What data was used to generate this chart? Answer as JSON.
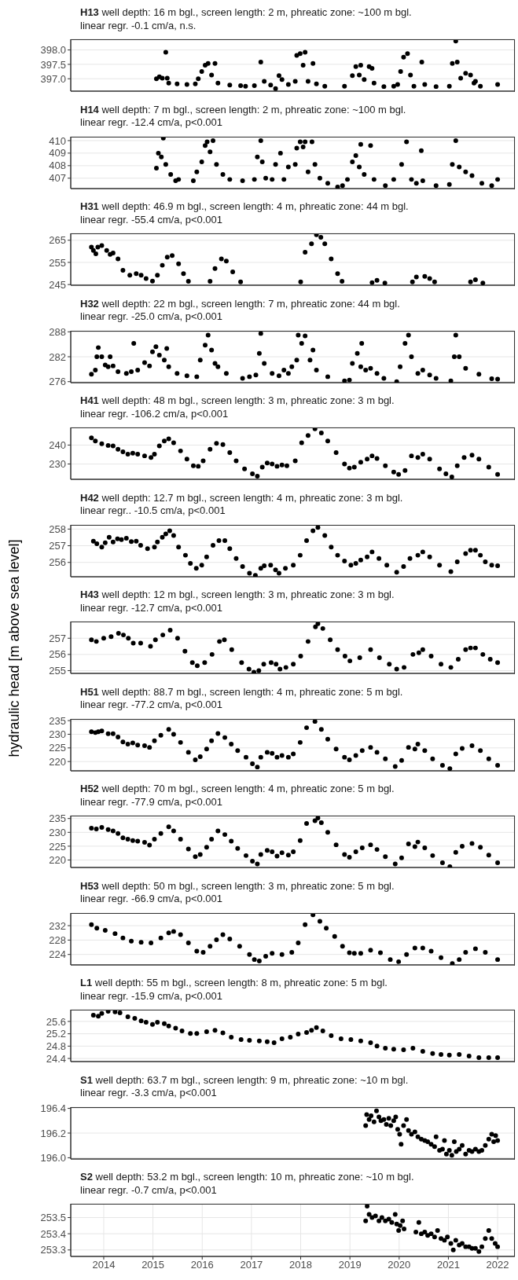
{
  "chart_data": [
    {
      "type": "scatter",
      "title": "H13 well depth: 16 m bgl., screen length: 2 m, phreatic zone: ~100 m bgl.",
      "subtitle": "linear regr. -0.1 cm/a, n.s.",
      "color": "#000000",
      "marker": "circle",
      "grid": true,
      "tick_labels": "y",
      "xlim": [
        2013.33,
        2022.35
      ],
      "xticks": [
        2014,
        2015,
        2016,
        2017,
        2018,
        2019,
        2020,
        2021,
        2022
      ],
      "ylim": [
        396.57,
        398.37
      ],
      "yticks": [
        {
          "value": 397,
          "label": "397.0"
        },
        397.5,
        {
          "value": 398,
          "label": "398.0"
        }
      ],
      "x": [
        2015.07,
        2015.13,
        2015.19,
        2015.26,
        2015.29,
        2015.32,
        2015.49,
        2015.69,
        2015.86,
        2015.92,
        2015.99,
        2016.06,
        2016.12,
        2016.19,
        2016.26,
        2016.32,
        2016.56,
        2016.78,
        2016.88,
        2017.06,
        2017.19,
        2017.26,
        2017.39,
        2017.49,
        2017.56,
        2017.62,
        2017.75,
        2017.89,
        2017.92,
        2017.99,
        2018.05,
        2018.09,
        2018.15,
        2018.25,
        2018.32,
        2018.49,
        2018.89,
        2019.05,
        2019.12,
        2019.19,
        2019.22,
        2019.29,
        2019.39,
        2019.45,
        2019.49,
        2019.69,
        2019.89,
        2019.97,
        2020.03,
        2020.09,
        2020.17,
        2020.23,
        2020.3,
        2020.46,
        2020.52,
        2020.75,
        2021.02,
        2021.08,
        2021.15,
        2021.18,
        2021.25,
        2021.35,
        2021.45,
        2021.52,
        2021.55,
        2021.65,
        2022.0
      ],
      "values": [
        397.0,
        397.07,
        397.02,
        397.92,
        397.02,
        396.85,
        396.82,
        396.8,
        396.82,
        397.0,
        397.25,
        397.47,
        397.53,
        397.13,
        397.53,
        396.85,
        396.78,
        396.76,
        396.74,
        396.76,
        397.58,
        396.91,
        396.78,
        396.66,
        397.11,
        396.97,
        396.8,
        396.91,
        397.81,
        397.87,
        397.47,
        397.92,
        396.91,
        397.53,
        396.82,
        396.74,
        396.74,
        397.11,
        397.42,
        397.13,
        397.47,
        396.97,
        397.42,
        397.36,
        396.85,
        396.73,
        396.74,
        396.8,
        397.25,
        397.75,
        397.87,
        397.13,
        396.74,
        397.58,
        396.8,
        396.73,
        396.74,
        397.53,
        398.31,
        397.58,
        397.02,
        397.19,
        397.13,
        396.85,
        396.91,
        396.74,
        396.8
      ]
    },
    {
      "type": "scatter",
      "title": "H14 well depth:  7 m bgl., screen length: 2 m, phreatic zone: ~100 m bgl.",
      "subtitle": "linear regr. -12.4 cm/a, p<0.001",
      "color": "#000000",
      "marker": "circle",
      "grid": true,
      "tick_labels": "y",
      "xlim": [
        2013.33,
        2022.35
      ],
      "xticks": [
        2014,
        2015,
        2016,
        2017,
        2018,
        2019,
        2020,
        2021,
        2022
      ],
      "ylim": [
        406.17,
        410.31
      ],
      "yticks": [
        407,
        408,
        409,
        410
      ],
      "x": [
        2015.07,
        2015.11,
        2015.17,
        2015.21,
        2015.26,
        2015.36,
        2015.46,
        2015.52,
        2015.82,
        2015.89,
        2015.99,
        2016.06,
        2016.1,
        2016.16,
        2016.22,
        2016.29,
        2016.42,
        2016.56,
        2016.82,
        2017.06,
        2017.12,
        2017.19,
        2017.22,
        2017.29,
        2017.42,
        2017.49,
        2017.59,
        2017.66,
        2017.75,
        2017.89,
        2017.92,
        2017.99,
        2018.05,
        2018.09,
        2018.15,
        2018.23,
        2018.29,
        2018.39,
        2018.55,
        2018.75,
        2018.85,
        2018.95,
        2019.05,
        2019.12,
        2019.19,
        2019.22,
        2019.29,
        2019.42,
        2019.49,
        2019.72,
        2019.89,
        2020.05,
        2020.15,
        2020.25,
        2020.35,
        2020.45,
        2020.48,
        2020.75,
        2021.02,
        2021.08,
        2021.15,
        2021.22,
        2021.35,
        2021.48,
        2021.68,
        2021.88,
        2022.0
      ],
      "values": [
        407.8,
        409.0,
        408.7,
        410.2,
        408.1,
        407.3,
        406.8,
        406.9,
        406.8,
        407.5,
        408.3,
        409.6,
        409.9,
        409.1,
        410.0,
        408.1,
        407.3,
        406.9,
        406.8,
        406.9,
        408.7,
        410.0,
        408.3,
        407.0,
        406.9,
        408.1,
        409.0,
        406.9,
        407.9,
        408.1,
        409.4,
        409.9,
        409.5,
        409.9,
        407.5,
        409.9,
        408.1,
        407.0,
        406.6,
        406.3,
        406.4,
        406.9,
        408.3,
        408.8,
        407.9,
        409.7,
        407.3,
        409.6,
        406.9,
        406.4,
        406.9,
        408.1,
        409.9,
        406.9,
        406.6,
        409.2,
        406.8,
        406.4,
        406.5,
        408.1,
        410.0,
        407.9,
        407.5,
        407.2,
        406.6,
        406.4,
        406.9
      ]
    },
    {
      "type": "scatter",
      "title": "H31 well depth:  46.9 m bgl., screen length: 4 m, phreatic zone: 44 m bgl.",
      "subtitle": "linear regr. -55.4 cm/a, p<0.001",
      "color": "#000000",
      "marker": "circle",
      "grid": true,
      "tick_labels": "y",
      "xlim": [
        2013.33,
        2022.35
      ],
      "xticks": [
        2014,
        2015,
        2016,
        2017,
        2018,
        2019,
        2020,
        2021,
        2022
      ],
      "ylim": [
        244.7,
        268.1
      ],
      "yticks": [
        245,
        255,
        265
      ],
      "x": [
        2013.75,
        2013.79,
        2013.84,
        2013.88,
        2013.96,
        2014.06,
        2014.13,
        2014.19,
        2014.29,
        2014.39,
        2014.53,
        2014.66,
        2014.76,
        2014.86,
        2014.99,
        2015.09,
        2015.19,
        2015.29,
        2015.39,
        2015.52,
        2015.62,
        2015.72,
        2016.16,
        2016.26,
        2016.39,
        2016.49,
        2016.62,
        2016.78,
        2018.0,
        2018.09,
        2018.22,
        2018.32,
        2018.41,
        2018.49,
        2018.62,
        2018.75,
        2018.84,
        2019.45,
        2019.55,
        2019.71,
        2020.27,
        2020.35,
        2020.52,
        2020.62,
        2020.72,
        2021.45,
        2021.55,
        2021.7
      ],
      "values": [
        261.9,
        260.4,
        258.9,
        261.9,
        262.6,
        260.4,
        258.6,
        259.2,
        256.6,
        251.4,
        249.2,
        249.9,
        249.2,
        247.7,
        246.6,
        249.2,
        253.7,
        257.4,
        258.1,
        254.4,
        249.9,
        246.5,
        246.5,
        252.2,
        256.6,
        255.6,
        250.7,
        246.2,
        246.2,
        259.6,
        263.4,
        267.5,
        266.3,
        263.4,
        256.6,
        249.9,
        246.5,
        245.9,
        246.9,
        245.7,
        246.2,
        248.4,
        248.7,
        247.7,
        246.2,
        246.2,
        247.2,
        245.7
      ]
    },
    {
      "type": "scatter",
      "title": "H32 well depth:  22 m bgl., screen length: 7 m, phreatic zone: 44 m bgl.",
      "subtitle": "linear regr. -25.0 cm/a, p<0.001",
      "color": "#000000",
      "marker": "circle",
      "grid": true,
      "tick_labels": "y",
      "xlim": [
        2013.33,
        2022.35
      ],
      "xticks": [
        2014,
        2015,
        2016,
        2017,
        2018,
        2019,
        2020,
        2021,
        2022
      ],
      "ylim": [
        275.76,
        288.24
      ],
      "yticks": [
        276,
        282,
        288
      ],
      "x": [
        2013.75,
        2013.83,
        2013.86,
        2013.89,
        2013.96,
        2014.03,
        2014.09,
        2014.13,
        2014.19,
        2014.29,
        2014.46,
        2014.56,
        2014.61,
        2014.69,
        2014.83,
        2014.93,
        2014.99,
        2015.06,
        2015.13,
        2015.23,
        2015.28,
        2015.32,
        2015.49,
        2015.69,
        2015.89,
        2015.96,
        2016.06,
        2016.12,
        2016.19,
        2016.26,
        2016.32,
        2016.49,
        2016.82,
        2016.96,
        2017.09,
        2017.16,
        2017.19,
        2017.26,
        2017.42,
        2017.56,
        2017.66,
        2017.75,
        2017.82,
        2017.92,
        2017.95,
        2018.02,
        2018.09,
        2018.19,
        2018.25,
        2018.32,
        2018.55,
        2018.89,
        2018.99,
        2019.05,
        2019.15,
        2019.22,
        2019.24,
        2019.32,
        2019.42,
        2019.55,
        2019.69,
        2019.95,
        2020.02,
        2020.12,
        2020.19,
        2020.25,
        2020.38,
        2020.48,
        2020.62,
        2020.75,
        2021.05,
        2021.12,
        2021.15,
        2021.22,
        2021.35,
        2021.62,
        2021.88,
        2022.0
      ],
      "values": [
        277.8,
        278.8,
        282.0,
        284.2,
        282.0,
        280.0,
        279.6,
        282.0,
        279.8,
        278.4,
        278.0,
        278.4,
        285.2,
        278.8,
        280.6,
        279.8,
        283.2,
        284.4,
        282.4,
        281.2,
        284.0,
        279.6,
        278.0,
        277.4,
        277.2,
        281.2,
        284.8,
        287.2,
        283.6,
        280.4,
        279.6,
        278.0,
        276.8,
        277.2,
        277.6,
        282.8,
        287.6,
        280.4,
        278.0,
        277.4,
        278.8,
        278.0,
        279.6,
        281.2,
        287.2,
        285.2,
        287.0,
        281.2,
        283.6,
        278.8,
        277.2,
        276.2,
        276.4,
        280.4,
        282.8,
        279.6,
        285.2,
        278.8,
        279.2,
        278.0,
        276.8,
        276.0,
        279.6,
        285.2,
        287.2,
        282.0,
        278.0,
        278.8,
        277.6,
        276.8,
        276.2,
        282.0,
        287.2,
        282.0,
        279.2,
        277.8,
        276.7,
        276.6
      ]
    },
    {
      "type": "scatter",
      "title": "H41 well depth: 48 m bgl., screen length: 3 m, phreatic zone: 3 m bgl.",
      "subtitle": "linear regr. -106.2 cm/a, p<0.001",
      "color": "#000000",
      "marker": "circle",
      "grid": true,
      "tick_labels": "y",
      "xlim": [
        2013.33,
        2022.35
      ],
      "xticks": [
        2014,
        2015,
        2016,
        2017,
        2018,
        2019,
        2020,
        2021,
        2022
      ],
      "ylim": [
        221.9,
        249.3
      ],
      "yticks": [
        230,
        240
      ],
      "x": [
        2013.75,
        2013.83,
        2013.96,
        2014.09,
        2014.19,
        2014.29,
        2014.39,
        2014.49,
        2014.59,
        2014.69,
        2014.83,
        2014.96,
        2015.03,
        2015.13,
        2015.23,
        2015.32,
        2015.42,
        2015.56,
        2015.69,
        2015.82,
        2015.92,
        2016.02,
        2016.16,
        2016.29,
        2016.42,
        2016.56,
        2016.69,
        2016.86,
        2017.02,
        2017.12,
        2017.22,
        2017.32,
        2017.42,
        2017.52,
        2017.62,
        2017.72,
        2017.89,
        2018.02,
        2018.15,
        2018.29,
        2018.42,
        2018.55,
        2018.72,
        2018.89,
        2018.99,
        2019.09,
        2019.22,
        2019.35,
        2019.45,
        2019.55,
        2019.72,
        2019.89,
        2019.99,
        2020.12,
        2020.25,
        2020.38,
        2020.48,
        2020.62,
        2020.82,
        2020.95,
        2021.07,
        2021.18,
        2021.32,
        2021.48,
        2021.62,
        2021.82,
        2022.0
      ],
      "values": [
        243.8,
        242.1,
        240.7,
        239.8,
        239.5,
        237.8,
        236.4,
        235.2,
        235.7,
        235.2,
        234.3,
        233.4,
        235.2,
        239.5,
        242.1,
        243.3,
        241.2,
        236.9,
        232.6,
        229.1,
        228.8,
        231.7,
        237.8,
        240.9,
        240.3,
        236.0,
        231.7,
        227.4,
        224.8,
        223.6,
        228.3,
        230.5,
        230.0,
        228.8,
        229.5,
        229.1,
        231.7,
        241.2,
        245.0,
        248.6,
        246.4,
        242.1,
        236.0,
        230.0,
        227.8,
        228.3,
        230.9,
        232.6,
        234.3,
        232.9,
        229.1,
        225.7,
        224.5,
        226.6,
        234.3,
        233.4,
        235.2,
        232.6,
        227.4,
        224.8,
        223.1,
        229.1,
        233.4,
        234.7,
        232.6,
        228.3,
        224.5
      ]
    },
    {
      "type": "scatter",
      "title": "H42 well depth: 12.7 m bgl., screen length: 4 m, phreatic zone: 3 m bgl.",
      "subtitle": "linear regr.. -10.5 cm/a, p<0.001",
      "color": "#000000",
      "marker": "circle",
      "grid": true,
      "tick_labels": "y",
      "xlim": [
        2013.33,
        2022.35
      ],
      "xticks": [
        2014,
        2015,
        2016,
        2017,
        2018,
        2019,
        2020,
        2021,
        2022
      ],
      "ylim": [
        255.14,
        258.25
      ],
      "yticks": [
        256,
        257,
        258
      ],
      "x": [
        2013.79,
        2013.86,
        2013.96,
        2014.03,
        2014.11,
        2014.19,
        2014.28,
        2014.36,
        2014.46,
        2014.56,
        2014.66,
        2014.75,
        2014.89,
        2015.03,
        2015.09,
        2015.19,
        2015.26,
        2015.34,
        2015.42,
        2015.52,
        2015.66,
        2015.76,
        2015.88,
        2015.99,
        2016.09,
        2016.22,
        2016.34,
        2016.46,
        2016.56,
        2016.69,
        2016.82,
        2016.96,
        2017.08,
        2017.19,
        2017.26,
        2017.39,
        2017.49,
        2017.56,
        2017.69,
        2017.85,
        2017.99,
        2018.12,
        2018.25,
        2018.35,
        2018.49,
        2018.62,
        2018.75,
        2018.89,
        2019.02,
        2019.12,
        2019.22,
        2019.35,
        2019.45,
        2019.59,
        2019.75,
        2019.95,
        2020.09,
        2020.22,
        2020.38,
        2020.48,
        2020.62,
        2020.82,
        2021.05,
        2021.18,
        2021.35,
        2021.45,
        2021.55,
        2021.65,
        2021.75,
        2021.88,
        2022.0
      ],
      "values": [
        257.27,
        257.12,
        256.92,
        257.18,
        257.51,
        257.22,
        257.41,
        257.37,
        257.45,
        257.25,
        257.27,
        257.02,
        256.82,
        256.92,
        257.22,
        257.51,
        257.71,
        257.9,
        257.61,
        256.92,
        256.43,
        255.94,
        255.65,
        255.84,
        256.33,
        257.02,
        257.31,
        257.31,
        256.82,
        256.24,
        255.75,
        255.35,
        255.22,
        255.65,
        255.8,
        255.84,
        255.55,
        255.35,
        255.65,
        255.84,
        256.43,
        257.31,
        257.9,
        258.1,
        257.61,
        256.92,
        256.43,
        256.08,
        255.84,
        255.94,
        256.14,
        256.33,
        256.63,
        256.24,
        255.84,
        255.41,
        255.75,
        256.24,
        256.43,
        256.63,
        256.33,
        255.84,
        255.45,
        256.04,
        256.53,
        256.73,
        256.73,
        256.43,
        256.04,
        255.84,
        255.8
      ]
    },
    {
      "type": "scatter",
      "title": "H43 well depth: 12 m bgl., screen length: 3 m, phreatic zone: 3 m bgl.",
      "subtitle": "linear regr. -12.7 cm/a, p<0.001",
      "ylabel": "hydraulic head [m above sea level]",
      "color": "#000000",
      "marker": "circle",
      "grid": true,
      "tick_labels": "y",
      "xlim": [
        2013.33,
        2022.35
      ],
      "xticks": [
        2014,
        2015,
        2016,
        2017,
        2018,
        2019,
        2020,
        2021,
        2022
      ],
      "ylim": [
        254.83,
        258.03
      ],
      "yticks": [
        255,
        256,
        257
      ],
      "x": [
        2013.75,
        2013.85,
        2014.0,
        2014.15,
        2014.3,
        2014.4,
        2014.5,
        2014.6,
        2014.75,
        2014.95,
        2015.05,
        2015.2,
        2015.35,
        2015.5,
        2015.65,
        2015.8,
        2015.9,
        2016.05,
        2016.2,
        2016.35,
        2016.45,
        2016.6,
        2016.8,
        2016.95,
        2017.05,
        2017.15,
        2017.25,
        2017.4,
        2017.5,
        2017.58,
        2017.7,
        2017.85,
        2018.0,
        2018.15,
        2018.3,
        2018.35,
        2018.45,
        2018.6,
        2018.75,
        2018.9,
        2019.0,
        2019.2,
        2019.42,
        2019.6,
        2019.8,
        2019.95,
        2020.1,
        2020.28,
        2020.4,
        2020.48,
        2020.65,
        2020.85,
        2021.05,
        2021.2,
        2021.35,
        2021.45,
        2021.55,
        2021.7,
        2021.85,
        2022.0
      ],
      "values": [
        256.9,
        256.8,
        257.0,
        257.1,
        257.3,
        257.2,
        257.0,
        256.7,
        256.7,
        256.5,
        256.9,
        257.2,
        257.5,
        257.0,
        256.2,
        255.5,
        255.3,
        255.5,
        256.0,
        256.8,
        256.9,
        256.3,
        255.5,
        255.1,
        254.9,
        255.0,
        255.4,
        255.5,
        255.4,
        255.1,
        255.2,
        255.4,
        255.9,
        256.8,
        257.7,
        257.9,
        257.6,
        256.9,
        256.3,
        255.9,
        255.6,
        255.8,
        256.3,
        255.8,
        255.4,
        255.1,
        255.2,
        256.0,
        256.1,
        256.3,
        255.9,
        255.4,
        255.2,
        255.7,
        256.3,
        256.4,
        256.4,
        256.0,
        255.7,
        255.5
      ]
    },
    {
      "type": "scatter",
      "title": "H51 well depth: 88.7 m bgl., screen length: 4 m, phreatic zone: 5 m bgl.",
      "subtitle": "linear regr. -77.2 cm/a, p<0.001",
      "color": "#000000",
      "marker": "circle",
      "grid": true,
      "tick_labels": "y",
      "xlim": [
        2013.33,
        2022.35
      ],
      "xticks": [
        2014,
        2015,
        2016,
        2017,
        2018,
        2019,
        2020,
        2021,
        2022
      ],
      "ylim": [
        216.6,
        235.6
      ],
      "yticks": [
        220,
        225,
        230,
        235
      ],
      "x": [
        2013.75,
        2013.83,
        2013.89,
        2013.96,
        2014.09,
        2014.19,
        2014.29,
        2014.39,
        2014.49,
        2014.59,
        2014.69,
        2014.83,
        2014.93,
        2015.03,
        2015.16,
        2015.32,
        2015.42,
        2015.56,
        2015.72,
        2015.86,
        2015.96,
        2016.09,
        2016.19,
        2016.32,
        2016.46,
        2016.59,
        2016.72,
        2016.89,
        2017.02,
        2017.12,
        2017.19,
        2017.32,
        2017.42,
        2017.52,
        2017.62,
        2017.75,
        2017.85,
        2017.99,
        2018.12,
        2018.29,
        2018.42,
        2018.55,
        2018.72,
        2018.89,
        2018.99,
        2019.12,
        2019.25,
        2019.42,
        2019.55,
        2019.72,
        2019.92,
        2020.05,
        2020.19,
        2020.32,
        2020.38,
        2020.52,
        2020.68,
        2020.88,
        2021.03,
        2021.15,
        2021.28,
        2021.48,
        2021.65,
        2021.82,
        2022.0
      ],
      "values": [
        230.9,
        230.6,
        230.9,
        231.2,
        230.2,
        230.2,
        229.0,
        227.2,
        226.4,
        226.8,
        226.0,
        225.8,
        225.2,
        227.6,
        229.6,
        231.8,
        230.0,
        227.0,
        223.4,
        220.6,
        221.8,
        224.6,
        227.6,
        230.3,
        228.8,
        226.4,
        224.0,
        221.6,
        219.2,
        218.0,
        221.6,
        223.4,
        223.0,
        221.6,
        222.2,
        221.6,
        222.8,
        227.0,
        232.4,
        234.7,
        231.8,
        228.2,
        224.6,
        221.6,
        220.6,
        222.2,
        224.0,
        225.2,
        223.4,
        221.0,
        218.2,
        220.4,
        225.2,
        224.6,
        226.4,
        224.0,
        221.0,
        218.6,
        217.4,
        222.8,
        224.8,
        225.8,
        224.0,
        221.0,
        218.6
      ]
    },
    {
      "type": "scatter",
      "title": "H52 well depth: 70 m bgl., screen length: 4 m, phreatic zone: 5 m bgl.",
      "subtitle": "linear regr. -77.9 cm/a, p<0.001",
      "color": "#000000",
      "marker": "circle",
      "grid": true,
      "tick_labels": "y",
      "xlim": [
        2013.33,
        2022.35
      ],
      "xticks": [
        2014,
        2015,
        2016,
        2017,
        2018,
        2019,
        2020,
        2021,
        2022
      ],
      "ylim": [
        217.3,
        236.05
      ],
      "yticks": [
        220,
        225,
        230,
        235
      ],
      "x": [
        2013.75,
        2013.85,
        2013.96,
        2014.09,
        2014.19,
        2014.29,
        2014.39,
        2014.49,
        2014.59,
        2014.69,
        2014.83,
        2014.93,
        2015.03,
        2015.16,
        2015.32,
        2015.42,
        2015.56,
        2015.72,
        2015.86,
        2015.96,
        2016.09,
        2016.19,
        2016.32,
        2016.46,
        2016.59,
        2016.72,
        2016.89,
        2017.02,
        2017.12,
        2017.19,
        2017.32,
        2017.42,
        2017.52,
        2017.62,
        2017.75,
        2017.85,
        2017.99,
        2018.12,
        2018.29,
        2018.35,
        2018.42,
        2018.55,
        2018.72,
        2018.89,
        2018.99,
        2019.12,
        2019.25,
        2019.42,
        2019.55,
        2019.72,
        2019.92,
        2020.05,
        2020.19,
        2020.32,
        2020.38,
        2020.52,
        2020.68,
        2020.88,
        2021.03,
        2021.15,
        2021.28,
        2021.48,
        2021.65,
        2021.82,
        2022.0
      ],
      "values": [
        231.5,
        231.2,
        231.8,
        231.0,
        230.5,
        229.6,
        228.0,
        227.5,
        227.0,
        226.8,
        226.4,
        225.4,
        227.5,
        229.6,
        232.0,
        230.5,
        227.5,
        224.0,
        221.2,
        222.0,
        224.6,
        227.5,
        230.5,
        229.2,
        226.8,
        224.2,
        221.6,
        219.6,
        218.6,
        222.0,
        223.5,
        223.0,
        221.4,
        222.6,
        221.8,
        223.0,
        227.0,
        233.2,
        234.2,
        235.2,
        233.5,
        230.0,
        225.5,
        222.0,
        221.0,
        223.0,
        224.4,
        225.5,
        223.8,
        221.2,
        218.6,
        220.8,
        225.8,
        224.8,
        226.5,
        224.4,
        221.6,
        219.0,
        217.6,
        222.8,
        225.0,
        226.0,
        224.6,
        221.8,
        219.0
      ]
    },
    {
      "type": "scatter",
      "title": "H53 well depth: 50 m bgl., screen length: 3 m, phreatic zone: 5 m bgl.",
      "subtitle": "linear regr. -66.9 cm/a, p<0.001",
      "color": "#000000",
      "marker": "circle",
      "grid": true,
      "tick_labels": "y",
      "xlim": [
        2013.33,
        2022.35
      ],
      "xticks": [
        2014,
        2015,
        2016,
        2017,
        2018,
        2019,
        2020,
        2021,
        2022
      ],
      "ylim": [
        221.1,
        235.5
      ],
      "yticks": [
        224,
        228,
        232
      ],
      "x": [
        2013.75,
        2013.86,
        2014.03,
        2014.23,
        2014.39,
        2014.56,
        2014.76,
        2014.96,
        2015.16,
        2015.32,
        2015.42,
        2015.56,
        2015.72,
        2015.89,
        2016.02,
        2016.16,
        2016.29,
        2016.42,
        2016.56,
        2016.76,
        2016.96,
        2017.06,
        2017.16,
        2017.29,
        2017.42,
        2017.62,
        2017.82,
        2017.95,
        2018.09,
        2018.25,
        2018.39,
        2018.52,
        2018.69,
        2018.85,
        2018.99,
        2019.09,
        2019.22,
        2019.42,
        2019.62,
        2019.82,
        2019.99,
        2020.15,
        2020.32,
        2020.48,
        2020.65,
        2020.85,
        2021.08,
        2021.22,
        2021.35,
        2021.55,
        2021.75,
        2022.0
      ],
      "values": [
        232.3,
        231.3,
        230.7,
        229.8,
        228.6,
        227.7,
        227.4,
        227.2,
        228.6,
        230.0,
        230.4,
        229.5,
        227.2,
        224.9,
        224.6,
        226.3,
        228.1,
        229.5,
        228.3,
        226.3,
        224.0,
        222.6,
        222.2,
        223.5,
        224.3,
        224.0,
        224.6,
        227.2,
        232.3,
        235.0,
        233.2,
        231.3,
        229.0,
        226.3,
        224.5,
        224.3,
        224.3,
        225.2,
        224.5,
        222.6,
        222.0,
        224.0,
        225.8,
        225.8,
        224.9,
        223.1,
        221.5,
        222.6,
        224.6,
        225.6,
        224.6,
        222.6
      ]
    },
    {
      "type": "scatter",
      "title": "L1 well depth: 55 m bgl., screen length: 8 m, phreatic zone: 5 m bgl.",
      "subtitle": "linear regr. -15.9 cm/a, p<0.001",
      "color": "#000000",
      "marker": "circle",
      "grid": true,
      "tick_labels": "y",
      "xlim": [
        2013.33,
        2022.35
      ],
      "xticks": [
        2014,
        2015,
        2016,
        2017,
        2018,
        2019,
        2020,
        2021,
        2022
      ],
      "ylim": [
        24.3,
        25.98
      ],
      "yticks": [
        24.4,
        24.8,
        25.2,
        25.6
      ],
      "x": [
        2013.79,
        2013.89,
        2013.96,
        2014.09,
        2014.23,
        2014.33,
        2014.49,
        2014.63,
        2014.76,
        2014.86,
        2014.99,
        2015.09,
        2015.23,
        2015.32,
        2015.46,
        2015.59,
        2015.76,
        2015.89,
        2016.09,
        2016.26,
        2016.42,
        2016.59,
        2016.79,
        2016.96,
        2017.16,
        2017.32,
        2017.46,
        2017.62,
        2017.79,
        2017.95,
        2018.12,
        2018.22,
        2018.32,
        2018.45,
        2018.62,
        2018.82,
        2019.02,
        2019.22,
        2019.42,
        2019.55,
        2019.72,
        2019.89,
        2020.09,
        2020.28,
        2020.48,
        2020.68,
        2020.85,
        2021.02,
        2021.22,
        2021.42,
        2021.62,
        2021.82,
        2022.0
      ],
      "values": [
        25.8,
        25.77,
        25.86,
        25.93,
        25.91,
        25.88,
        25.75,
        25.7,
        25.62,
        25.57,
        25.5,
        25.57,
        25.53,
        25.45,
        25.38,
        25.29,
        25.21,
        25.21,
        25.27,
        25.31,
        25.23,
        25.09,
        25.01,
        24.99,
        24.97,
        24.94,
        24.91,
        25.04,
        25.09,
        25.19,
        25.24,
        25.31,
        25.4,
        25.29,
        25.14,
        25.04,
        25.01,
        24.97,
        24.91,
        24.8,
        24.73,
        24.7,
        24.68,
        24.73,
        24.63,
        24.56,
        24.53,
        24.51,
        24.53,
        24.48,
        24.43,
        24.43,
        24.43
      ]
    },
    {
      "type": "scatter",
      "title": "S1 well depth: 63.7 m bgl., screen length: 9 m, phreatic zone: ~10 m bgl.",
      "subtitle": "linear regr. -3.3 cm/a, p<0.001",
      "color": "#000000",
      "marker": "circle",
      "grid": true,
      "tick_labels": "y",
      "xlim": [
        2013.33,
        2022.35
      ],
      "xticks": [
        2014,
        2015,
        2016,
        2017,
        2018,
        2019,
        2020,
        2021,
        2022
      ],
      "ylim": [
        195.99,
        196.41
      ],
      "yticks": [
        {
          "value": 196,
          "label": "196.0"
        },
        196.2,
        196.4
      ],
      "x": [
        2019.32,
        2019.34,
        2019.39,
        2019.43,
        2019.49,
        2019.54,
        2019.59,
        2019.63,
        2019.69,
        2019.74,
        2019.79,
        2019.83,
        2019.89,
        2019.93,
        2019.97,
        2020.01,
        2020.04,
        2020.09,
        2020.15,
        2020.19,
        2020.25,
        2020.32,
        2020.38,
        2020.45,
        2020.52,
        2020.58,
        2020.65,
        2020.72,
        2020.75,
        2020.82,
        2020.88,
        2020.92,
        2020.96,
        2021.02,
        2021.07,
        2021.12,
        2021.16,
        2021.22,
        2021.28,
        2021.35,
        2021.42,
        2021.48,
        2021.55,
        2021.62,
        2021.68,
        2021.75,
        2021.82,
        2021.88,
        2021.92,
        2021.96,
        2022.0
      ],
      "values": [
        196.26,
        196.35,
        196.31,
        196.34,
        196.29,
        196.38,
        196.33,
        196.3,
        196.31,
        196.27,
        196.32,
        196.26,
        196.3,
        196.33,
        196.23,
        196.19,
        196.11,
        196.26,
        196.31,
        196.22,
        196.19,
        196.21,
        196.17,
        196.15,
        196.14,
        196.13,
        196.11,
        196.09,
        196.17,
        196.06,
        196.07,
        196.14,
        196.03,
        196.06,
        196.02,
        196.13,
        196.05,
        196.07,
        196.1,
        196.03,
        196.06,
        196.05,
        196.07,
        196.05,
        196.06,
        196.1,
        196.15,
        196.19,
        196.13,
        196.18,
        196.14
      ]
    },
    {
      "type": "scatter",
      "title": "S2 well depth: 53.2 m bgl., screen length: 10 m, phreatic zone: ~10 m bgl.",
      "subtitle": "linear regr. -0.7 cm/a, p<0.001",
      "color": "#000000",
      "marker": "circle",
      "grid": true,
      "xlim": [
        2013.33,
        2022.35
      ],
      "xticks": [
        2014,
        2015,
        2016,
        2017,
        2018,
        2019,
        2020,
        2021,
        2022
      ],
      "ylim": [
        253.26,
        253.585
      ],
      "yticks": [
        253.3,
        253.4,
        253.5
      ],
      "x": [
        2019.32,
        2019.35,
        2019.39,
        2019.45,
        2019.52,
        2019.59,
        2019.65,
        2019.72,
        2019.79,
        2019.85,
        2019.92,
        2019.95,
        2019.99,
        2020.02,
        2020.07,
        2020.1,
        2020.34,
        2020.4,
        2020.45,
        2020.52,
        2020.58,
        2020.65,
        2020.72,
        2020.78,
        2020.85,
        2020.92,
        2020.98,
        2021.05,
        2021.1,
        2021.15,
        2021.22,
        2021.28,
        2021.35,
        2021.42,
        2021.48,
        2021.55,
        2021.62,
        2021.68,
        2021.75,
        2021.82,
        2021.88,
        2021.95,
        2022.0
      ],
      "values": [
        253.48,
        253.57,
        253.52,
        253.5,
        253.51,
        253.48,
        253.5,
        253.48,
        253.49,
        253.47,
        253.52,
        253.46,
        253.42,
        253.45,
        253.48,
        253.43,
        253.41,
        253.47,
        253.4,
        253.41,
        253.39,
        253.4,
        253.38,
        253.42,
        253.37,
        253.36,
        253.38,
        253.34,
        253.3,
        253.36,
        253.33,
        253.34,
        253.32,
        253.32,
        253.31,
        253.31,
        253.29,
        253.32,
        253.37,
        253.42,
        253.37,
        253.34,
        253.32
      ]
    }
  ]
}
